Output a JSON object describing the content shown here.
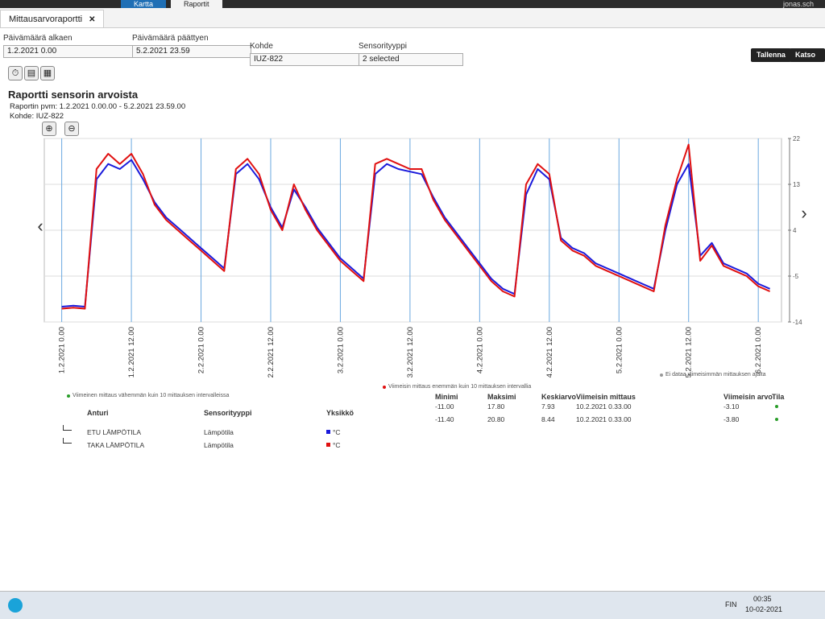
{
  "nav": {
    "tabs": [
      "Kartta",
      "Raportit"
    ],
    "user": "jonas.sch"
  },
  "page_tab": "Mittausarvoraportti",
  "form": {
    "fields": [
      {
        "label": "Päivämäärä alkaen",
        "value": "1.2.2021 0.00"
      },
      {
        "label": "Päivämäärä päättyen",
        "value": "5.2.2021 23.59"
      },
      {
        "label": "Kohde",
        "value": "IUZ-822"
      },
      {
        "label": "Sensorityyppi",
        "value": "2 selected"
      }
    ],
    "buttons": [
      "Tallenna",
      "Katso rap"
    ]
  },
  "report": {
    "title": "Raportti sensorin arvoista",
    "date_line": "Raportin pvm: 1.2.2021 0.00.00 - 5.2.2021 23.59.00",
    "target": "Kohde: IUZ-822"
  },
  "chart_data": {
    "type": "line",
    "x": [
      "1.2.2021 0.00",
      "1.2.2021 2.00",
      "1.2.2021 4.00",
      "1.2.2021 6.00",
      "1.2.2021 8.00",
      "1.2.2021 10.00",
      "1.2.2021 12.00",
      "1.2.2021 14.00",
      "1.2.2021 16.00",
      "1.2.2021 18.00",
      "1.2.2021 20.00",
      "1.2.2021 22.00",
      "2.2.2021 0.00",
      "2.2.2021 2.00",
      "2.2.2021 4.00",
      "2.2.2021 6.00",
      "2.2.2021 8.00",
      "2.2.2021 10.00",
      "2.2.2021 12.00",
      "2.2.2021 14.00",
      "2.2.2021 16.00",
      "2.2.2021 18.00",
      "2.2.2021 20.00",
      "2.2.2021 22.00",
      "3.2.2021 0.00",
      "3.2.2021 2.00",
      "3.2.2021 4.00",
      "3.2.2021 6.00",
      "3.2.2021 8.00",
      "3.2.2021 10.00",
      "3.2.2021 12.00",
      "3.2.2021 14.00",
      "3.2.2021 16.00",
      "3.2.2021 18.00",
      "3.2.2021 20.00",
      "3.2.2021 22.00",
      "4.2.2021 0.00",
      "4.2.2021 2.00",
      "4.2.2021 4.00",
      "4.2.2021 6.00",
      "4.2.2021 8.00",
      "4.2.2021 10.00",
      "4.2.2021 12.00",
      "4.2.2021 14.00",
      "4.2.2021 16.00",
      "4.2.2021 18.00",
      "4.2.2021 20.00",
      "4.2.2021 22.00",
      "5.2.2021 0.00",
      "5.2.2021 2.00",
      "5.2.2021 4.00",
      "5.2.2021 6.00",
      "5.2.2021 8.00",
      "5.2.2021 10.00",
      "5.2.2021 12.00",
      "5.2.2021 14.00",
      "5.2.2021 16.00",
      "5.2.2021 18.00",
      "5.2.2021 20.00",
      "5.2.2021 22.00",
      "6.2.2021 0.00",
      "6.2.2021 2.00"
    ],
    "series": [
      {
        "name": "ETU LÄMPÖTILA",
        "color": "#1a1adb",
        "values": [
          -11,
          -10.8,
          -11,
          14,
          17,
          16,
          17.8,
          14,
          9.5,
          6.5,
          4.5,
          2.5,
          0.5,
          -1.5,
          -3.5,
          15,
          17,
          14,
          8.5,
          4.5,
          12,
          8.5,
          4.5,
          1.5,
          -1.5,
          -3.5,
          -5.5,
          15,
          17,
          16,
          15.5,
          15,
          10.5,
          6.5,
          3.5,
          0.5,
          -2.5,
          -5.5,
          -7.5,
          -8.5,
          11,
          16,
          14,
          2.5,
          0.5,
          -0.5,
          -2.5,
          -3.5,
          -4.5,
          -5.5,
          -6.5,
          -7.5,
          4,
          13,
          17,
          -1,
          1.5,
          -2.5,
          -3.5,
          -4.5,
          -6.5,
          -7.5
        ]
      },
      {
        "name": "TAKA LÄMPÖTILA",
        "color": "#e01010",
        "values": [
          -11.4,
          -11.2,
          -11.4,
          16,
          19,
          17,
          19,
          15,
          9,
          6,
          4,
          2,
          0,
          -2,
          -4,
          16,
          18,
          15,
          8,
          4,
          13,
          8,
          4,
          1,
          -2,
          -4,
          -6,
          17,
          18,
          17,
          16,
          16,
          10,
          6,
          3,
          0,
          -3,
          -6,
          -8,
          -9,
          13,
          17,
          15,
          2,
          0,
          -1,
          -3,
          -4,
          -5,
          -6,
          -7,
          -8,
          5,
          14,
          20.8,
          -2,
          1,
          -3,
          -4,
          -5,
          -7,
          -8
        ]
      }
    ],
    "xlim": [
      "31.1.2021 21.00",
      "6.2.2021 4.00"
    ],
    "xticks": [
      "1.2.2021 0.00",
      "1.2.2021 12.00",
      "2.2.2021 0.00",
      "2.2.2021 12.00",
      "3.2.2021 0.00",
      "3.2.2021 12.00",
      "4.2.2021 0.00",
      "4.2.2021 12.00",
      "5.2.2021 0.00",
      "5.2.2021 12.00",
      "6.2.2021 0.00"
    ],
    "ylim": [
      -14,
      22
    ],
    "yticks": [
      -14,
      -5,
      4,
      13,
      22
    ],
    "y_axis_side": "right",
    "grid": true
  },
  "legend_notes": [
    "Viimeinen mittaus vähemmän kuin 10 mittauksen intervalleissa",
    "Viimeisin mittaus enemmän kuin 10 mittauksen intervallia",
    "Ei dataa viimeisimmän mittauksen ajalta"
  ],
  "table": {
    "columns": [
      "Anturi",
      "Sensorityyppi",
      "Yksikkö",
      "Minimi",
      "Maksimi",
      "Keskiarvo",
      "Viimeisin mittaus",
      "Viimeisin arvo",
      "Tila"
    ],
    "rows": [
      [
        "ETU LÄMPÖTILA",
        "Lämpötila",
        "°C",
        "-11.00",
        "17.80",
        "7.93",
        "10.2.2021 0.33.00",
        "-3.10"
      ],
      [
        "TAKA LÄMPÖTILA",
        "Lämpötila",
        "°C",
        "-11.40",
        "20.80",
        "8.44",
        "10.2.2021 0.33.00",
        "-3.80"
      ]
    ]
  },
  "taskbar": {
    "lang": "FIN",
    "time": "00:35",
    "date": "10-02-2021"
  }
}
